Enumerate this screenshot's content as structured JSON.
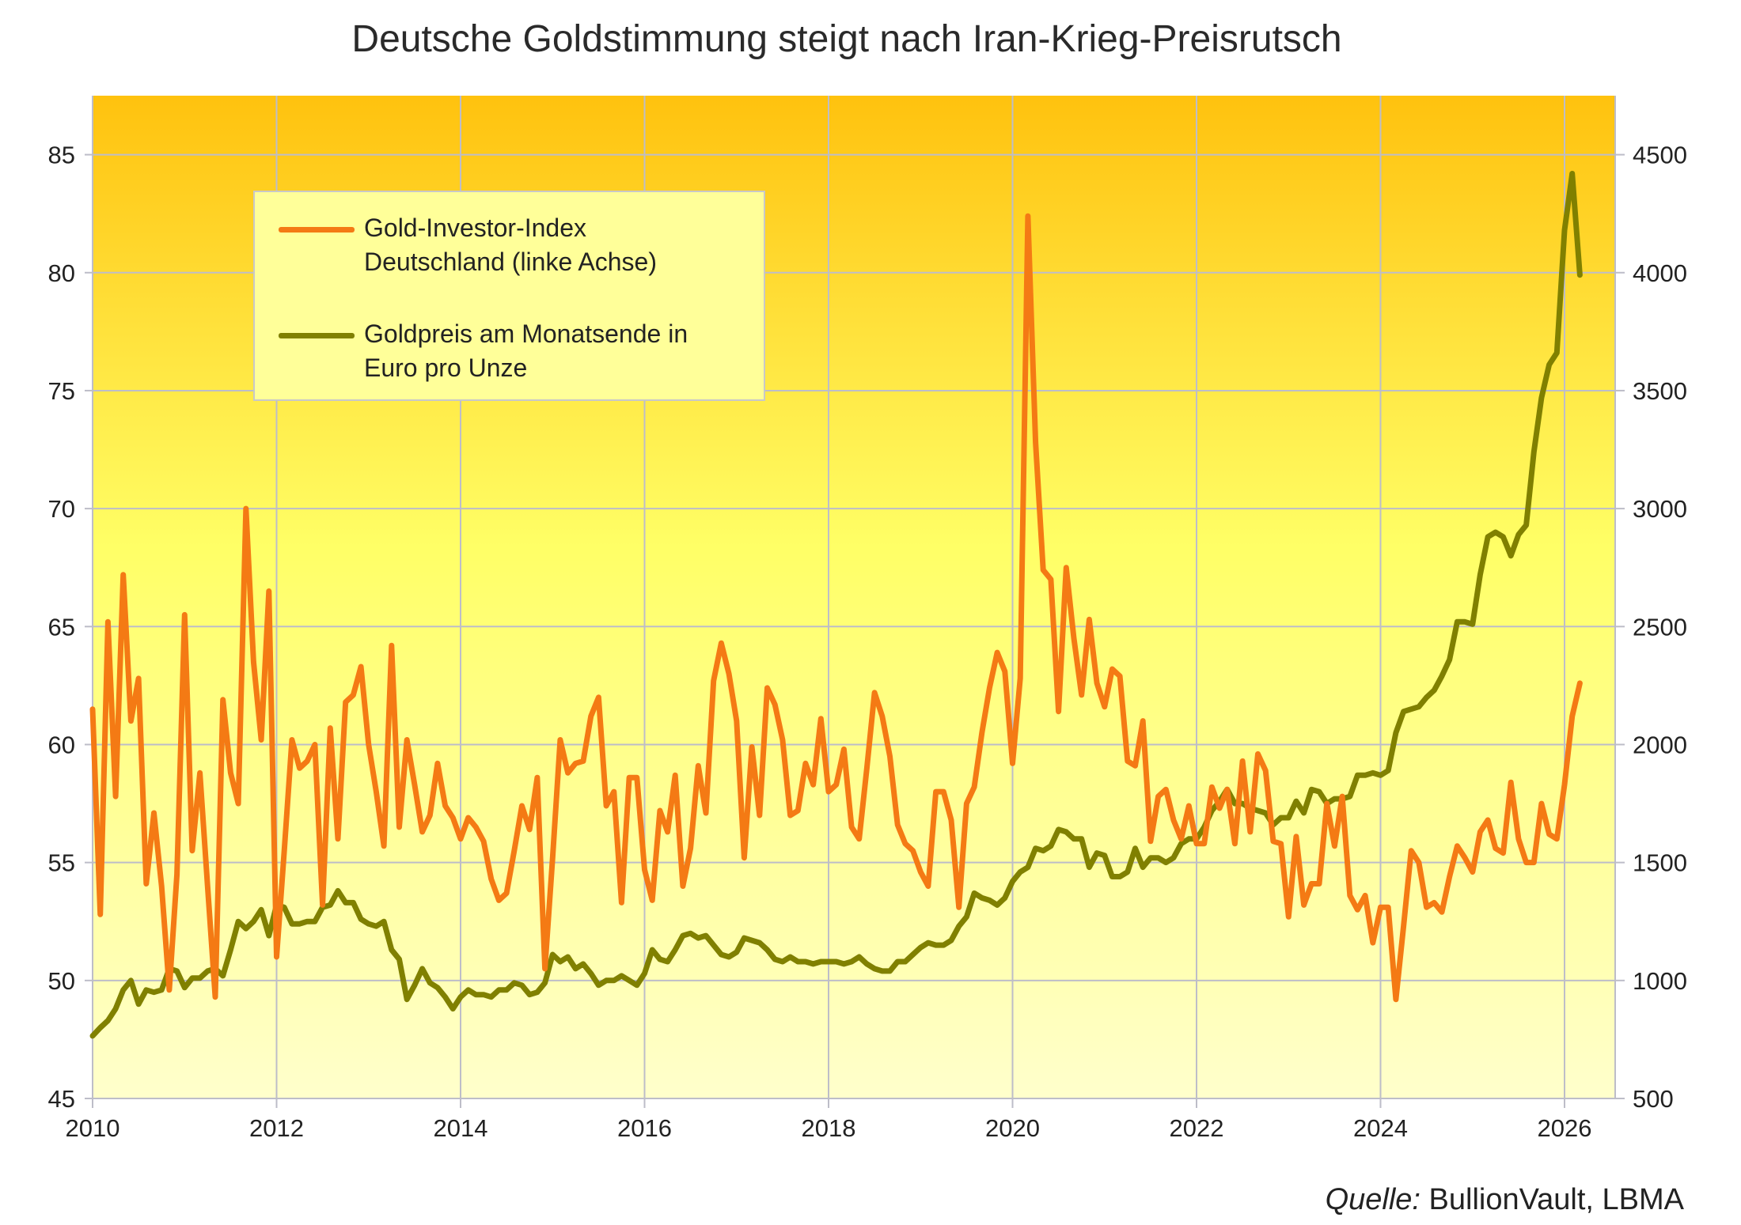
{
  "chart_data": {
    "type": "line",
    "title": "Deutsche Goldstimmung steigt nach Iran-Krieg-Preisrutsch",
    "xlabel": "",
    "x_ticks": [
      "2010",
      "2012",
      "2014",
      "2016",
      "2018",
      "2020",
      "2022",
      "2024",
      "2026"
    ],
    "y_left": {
      "label": "",
      "lim": [
        45,
        87.5
      ],
      "ticks": [
        "45",
        "50",
        "55",
        "60",
        "65",
        "70",
        "75",
        "80",
        "85"
      ]
    },
    "y_right": {
      "label": "",
      "lim": [
        500,
        4750
      ],
      "ticks": [
        "500",
        "1000",
        "1500",
        "2000",
        "2500",
        "3000",
        "3500",
        "4000",
        "4500"
      ]
    },
    "grid": true,
    "legend_placement": "top-left",
    "series": [
      {
        "name": "Gold-Investor-Index Deutschland (linke Achse)",
        "axis": "left",
        "color": "#F47A14",
        "values_by_year": {
          "2010": [
            61.5,
            52.8,
            65.2,
            57.8,
            67.2,
            61.0,
            62.8,
            54.1,
            57.1,
            54.0,
            49.6,
            54.5
          ],
          "2011": [
            65.5,
            55.5,
            58.8,
            54.0,
            49.3,
            61.9,
            58.8,
            57.5,
            70.0,
            63.5,
            60.2,
            66.5
          ],
          "2012": [
            51.0,
            55.5,
            60.2,
            59.0,
            59.3,
            60.0,
            53.2,
            60.7,
            56.0,
            61.8,
            62.1,
            63.3
          ],
          "2013": [
            60.0,
            58.0,
            55.7,
            64.2,
            56.5,
            60.2,
            58.3,
            56.3,
            57.0,
            59.2,
            57.4,
            56.9
          ],
          "2014": [
            56.0,
            56.9,
            56.5,
            55.9,
            54.3,
            53.4,
            53.7,
            55.5,
            57.4,
            56.4,
            58.6,
            50.5
          ],
          "2015": [
            55.2,
            60.2,
            58.8,
            59.2,
            59.3,
            61.2,
            62.0,
            57.4,
            58.0,
            53.3,
            58.6,
            58.6
          ],
          "2016": [
            54.7,
            53.4,
            57.2,
            56.3,
            58.7,
            54.0,
            55.6,
            59.1,
            57.1,
            62.7,
            64.3,
            63.0
          ],
          "2017": [
            61.0,
            55.2,
            59.9,
            57.0,
            62.4,
            61.7,
            60.2,
            57.0,
            57.2,
            59.2,
            58.3,
            61.1
          ],
          "2018": [
            58.0,
            58.3,
            59.8,
            56.5,
            56.0,
            59.0,
            62.2,
            61.2,
            59.5,
            56.6,
            55.8,
            55.5
          ],
          "2019": [
            54.6,
            54.0,
            58.0,
            58.0,
            56.8,
            53.1,
            57.5,
            58.2,
            60.5,
            62.4,
            63.9,
            63.1
          ],
          "2020": [
            59.2,
            62.8,
            82.4,
            72.8,
            67.4,
            67.0,
            61.4,
            67.5,
            64.5,
            62.1,
            65.3,
            62.6
          ],
          "2021": [
            61.6,
            63.2,
            62.9,
            59.3,
            59.1,
            61.0,
            55.9,
            57.8,
            58.1,
            56.8,
            56.0,
            57.4
          ],
          "2022": [
            55.8,
            55.8,
            58.2,
            57.3,
            58.1,
            55.8,
            59.3,
            56.3,
            59.6,
            58.9,
            55.9,
            55.8
          ],
          "2023": [
            52.7,
            56.1,
            53.2,
            54.1,
            54.1,
            57.5,
            55.7,
            57.8,
            53.6,
            53.0,
            53.6,
            51.6
          ],
          "2024": [
            53.1,
            53.1,
            49.2,
            52.3,
            55.5,
            55.0,
            53.1,
            53.3,
            52.9,
            54.4,
            55.7,
            55.2
          ],
          "2025": [
            54.6,
            56.3,
            56.8,
            55.6,
            55.4,
            58.4,
            56.0,
            55.0,
            55.0,
            57.5,
            56.2,
            56.0
          ],
          "2026": [
            58.3,
            61.2,
            62.6
          ]
        }
      },
      {
        "name": "Goldpreis am Monatsende in Euro pro Unze",
        "axis": "right",
        "color": "#808000",
        "values_by_year": {
          "2010": [
            765,
            800,
            830,
            880,
            960,
            1000,
            900,
            960,
            950,
            960,
            1050,
            1040
          ],
          "2011": [
            970,
            1010,
            1010,
            1040,
            1050,
            1020,
            1130,
            1250,
            1220,
            1250,
            1300,
            1190
          ],
          "2012": [
            1320,
            1310,
            1240,
            1240,
            1250,
            1250,
            1310,
            1320,
            1380,
            1330,
            1330,
            1260
          ],
          "2013": [
            1240,
            1230,
            1250,
            1130,
            1090,
            920,
            980,
            1050,
            990,
            970,
            930,
            880
          ],
          "2014": [
            930,
            960,
            940,
            940,
            930,
            960,
            960,
            990,
            980,
            940,
            950,
            990
          ],
          "2015": [
            1110,
            1080,
            1100,
            1050,
            1070,
            1030,
            980,
            1000,
            1000,
            1020,
            1000,
            980
          ],
          "2016": [
            1030,
            1130,
            1090,
            1080,
            1130,
            1190,
            1200,
            1180,
            1190,
            1150,
            1110,
            1100
          ],
          "2017": [
            1120,
            1180,
            1170,
            1160,
            1130,
            1090,
            1080,
            1100,
            1080,
            1080,
            1070,
            1080
          ],
          "2018": [
            1080,
            1080,
            1070,
            1080,
            1100,
            1070,
            1050,
            1040,
            1040,
            1080,
            1080,
            1110
          ],
          "2019": [
            1140,
            1160,
            1150,
            1150,
            1170,
            1230,
            1270,
            1370,
            1350,
            1340,
            1320,
            1350
          ],
          "2020": [
            1420,
            1460,
            1480,
            1560,
            1550,
            1570,
            1640,
            1630,
            1600,
            1600,
            1480,
            1540
          ],
          "2021": [
            1530,
            1440,
            1440,
            1460,
            1560,
            1480,
            1520,
            1520,
            1500,
            1520,
            1580,
            1600
          ],
          "2022": [
            1600,
            1650,
            1720,
            1760,
            1810,
            1750,
            1750,
            1730,
            1720,
            1710,
            1660,
            1690
          ],
          "2023": [
            1690,
            1760,
            1710,
            1810,
            1800,
            1750,
            1770,
            1770,
            1780,
            1870,
            1870,
            1880
          ],
          "2024": [
            1870,
            1890,
            2050,
            2140,
            2150,
            2160,
            2200,
            2230,
            2290,
            2360,
            2520,
            2520
          ],
          "2025": [
            2510,
            2720,
            2880,
            2900,
            2880,
            2800,
            2890,
            2930,
            3240,
            3470,
            3610,
            3660
          ],
          "2026": [
            4180,
            4420,
            3990
          ]
        }
      }
    ],
    "legend": {
      "item1_line1": "Gold-Investor-Index",
      "item1_line2": "Deutschland (linke Achse)",
      "item2_line1": "Goldpreis am Monatsende in",
      "item2_line2": "Euro pro Unze"
    }
  },
  "source": {
    "label": "Quelle:",
    "text": " BullionVault, LBMA"
  },
  "colors": {
    "bg_top": "#FFC20E",
    "bg_mid": "#FFFF66",
    "bg_bottom": "#FFFFCC",
    "grid": "#BDBDC8"
  }
}
